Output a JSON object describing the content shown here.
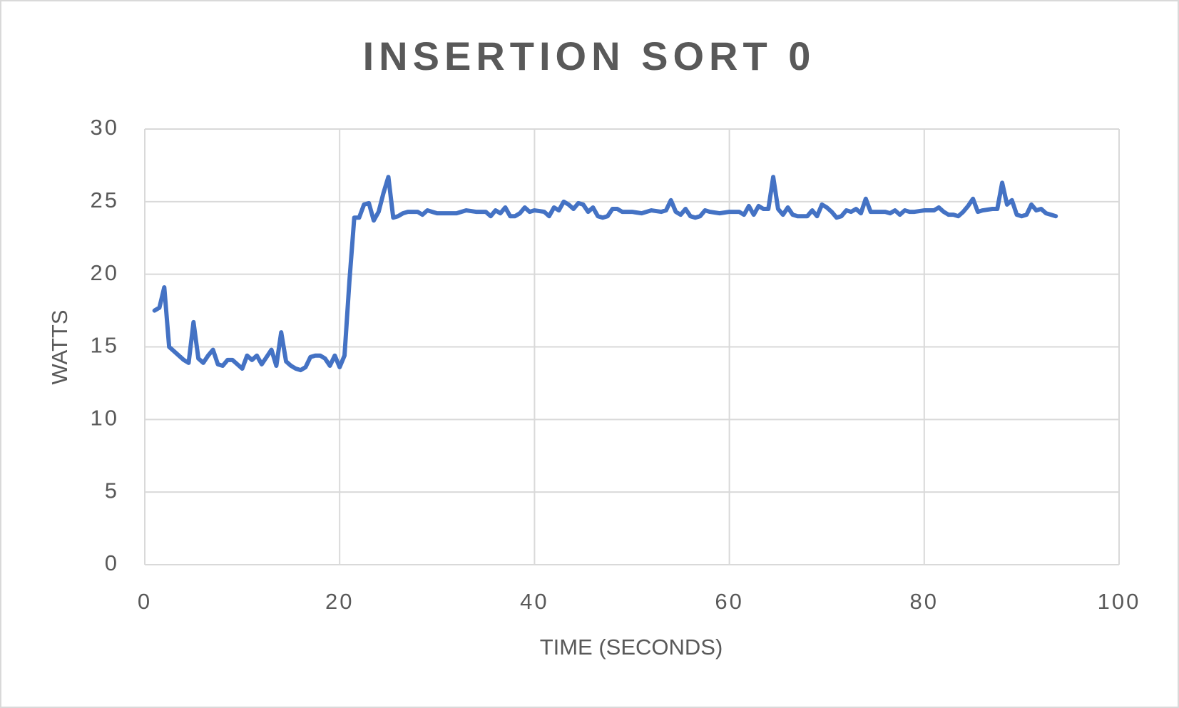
{
  "chart_data": {
    "type": "line",
    "title": "INSERTION SORT 0",
    "x_label": "TIME (SECONDS)",
    "y_label": "WATTS",
    "x": [
      1.0,
      1.5,
      2.0,
      2.5,
      3.0,
      3.5,
      4.0,
      4.5,
      5.0,
      5.5,
      6.0,
      6.5,
      7.0,
      7.5,
      8.0,
      8.5,
      9.0,
      9.5,
      10.0,
      10.5,
      11.0,
      11.5,
      12.0,
      12.5,
      13.0,
      13.5,
      14.0,
      14.5,
      15.0,
      15.5,
      16.0,
      16.5,
      17.0,
      17.5,
      18.0,
      18.5,
      19.0,
      19.5,
      20.0,
      20.5,
      21.0,
      21.5,
      22.0,
      22.5,
      23.0,
      23.5,
      24.0,
      24.5,
      25.0,
      25.5,
      26.0,
      26.5,
      27.0,
      28.0,
      28.5,
      29.0,
      29.5,
      30,
      31,
      32,
      33,
      34,
      35,
      35.5,
      36,
      36.5,
      37,
      37.5,
      38,
      38.5,
      39,
      39.5,
      40,
      41,
      41.5,
      42,
      42.5,
      43,
      43.5,
      44,
      44.5,
      45,
      45.5,
      46,
      46.5,
      47,
      47.5,
      48,
      48.5,
      49,
      50,
      51,
      52,
      53,
      53.5,
      54,
      54.5,
      55,
      55.5,
      56,
      56.5,
      57,
      57.5,
      58,
      59,
      60,
      61,
      61.5,
      62,
      62.5,
      63,
      63.5,
      64,
      64.5,
      65,
      65.5,
      66,
      66.5,
      67,
      68,
      68.5,
      69,
      69.5,
      70,
      70.5,
      71,
      71.5,
      72,
      72.5,
      73,
      73.5,
      74,
      74.5,
      75,
      76,
      76.5,
      77,
      77.5,
      78,
      78.5,
      79,
      80,
      81,
      81.5,
      82,
      82.5,
      83,
      83.5,
      84,
      84.5,
      85,
      85.5,
      86,
      87,
      87.5,
      88,
      88.5,
      89,
      89.5,
      90,
      90.5,
      91,
      91.5,
      92,
      92.5,
      93,
      93.5
    ],
    "series": [
      {
        "name": "Watts",
        "color": "#4472c4",
        "values": [
          17.5,
          17.7,
          19.1,
          15.0,
          14.7,
          14.4,
          14.1,
          13.9,
          16.7,
          14.2,
          13.9,
          14.4,
          14.8,
          13.8,
          13.7,
          14.1,
          14.1,
          13.8,
          13.5,
          14.4,
          14.1,
          14.4,
          13.8,
          14.3,
          14.8,
          13.7,
          16.0,
          14.0,
          13.7,
          13.5,
          13.4,
          13.6,
          14.3,
          14.4,
          14.4,
          14.2,
          13.7,
          14.4,
          13.6,
          14.4,
          19.5,
          23.9,
          23.9,
          24.8,
          24.9,
          23.7,
          24.3,
          25.6,
          26.7,
          23.9,
          24.0,
          24.2,
          24.3,
          24.3,
          24.1,
          24.4,
          24.3,
          24.2,
          24.2,
          24.2,
          24.4,
          24.3,
          24.3,
          24.0,
          24.4,
          24.2,
          24.6,
          24.0,
          24.0,
          24.2,
          24.6,
          24.3,
          24.4,
          24.3,
          24.0,
          24.6,
          24.4,
          25.0,
          24.8,
          24.5,
          24.9,
          24.8,
          24.3,
          24.6,
          24.0,
          23.9,
          24.0,
          24.5,
          24.5,
          24.3,
          24.3,
          24.2,
          24.4,
          24.3,
          24.4,
          25.1,
          24.3,
          24.1,
          24.5,
          24.0,
          23.9,
          24.0,
          24.4,
          24.3,
          24.2,
          24.3,
          24.3,
          24.1,
          24.7,
          24.1,
          24.7,
          24.5,
          24.5,
          26.7,
          24.5,
          24.1,
          24.6,
          24.1,
          24.0,
          24.0,
          24.4,
          24.0,
          24.8,
          24.6,
          24.3,
          23.9,
          24.0,
          24.4,
          24.3,
          24.5,
          24.2,
          25.2,
          24.3,
          24.3,
          24.3,
          24.2,
          24.4,
          24.1,
          24.4,
          24.3,
          24.3,
          24.4,
          24.4,
          24.6,
          24.3,
          24.1,
          24.1,
          24.0,
          24.3,
          24.7,
          25.2,
          24.3,
          24.4,
          24.5,
          24.5,
          26.3,
          24.8,
          25.1,
          24.1,
          24.0,
          24.1,
          24.8,
          24.4,
          24.5,
          24.2,
          24.1,
          24.0
        ]
      }
    ],
    "xlim": [
      0,
      100
    ],
    "xticks": [
      0,
      20,
      40,
      60,
      80,
      100
    ],
    "ylim": [
      0,
      30
    ],
    "yticks": [
      0,
      5,
      10,
      15,
      20,
      25,
      30
    ],
    "grid": true
  }
}
